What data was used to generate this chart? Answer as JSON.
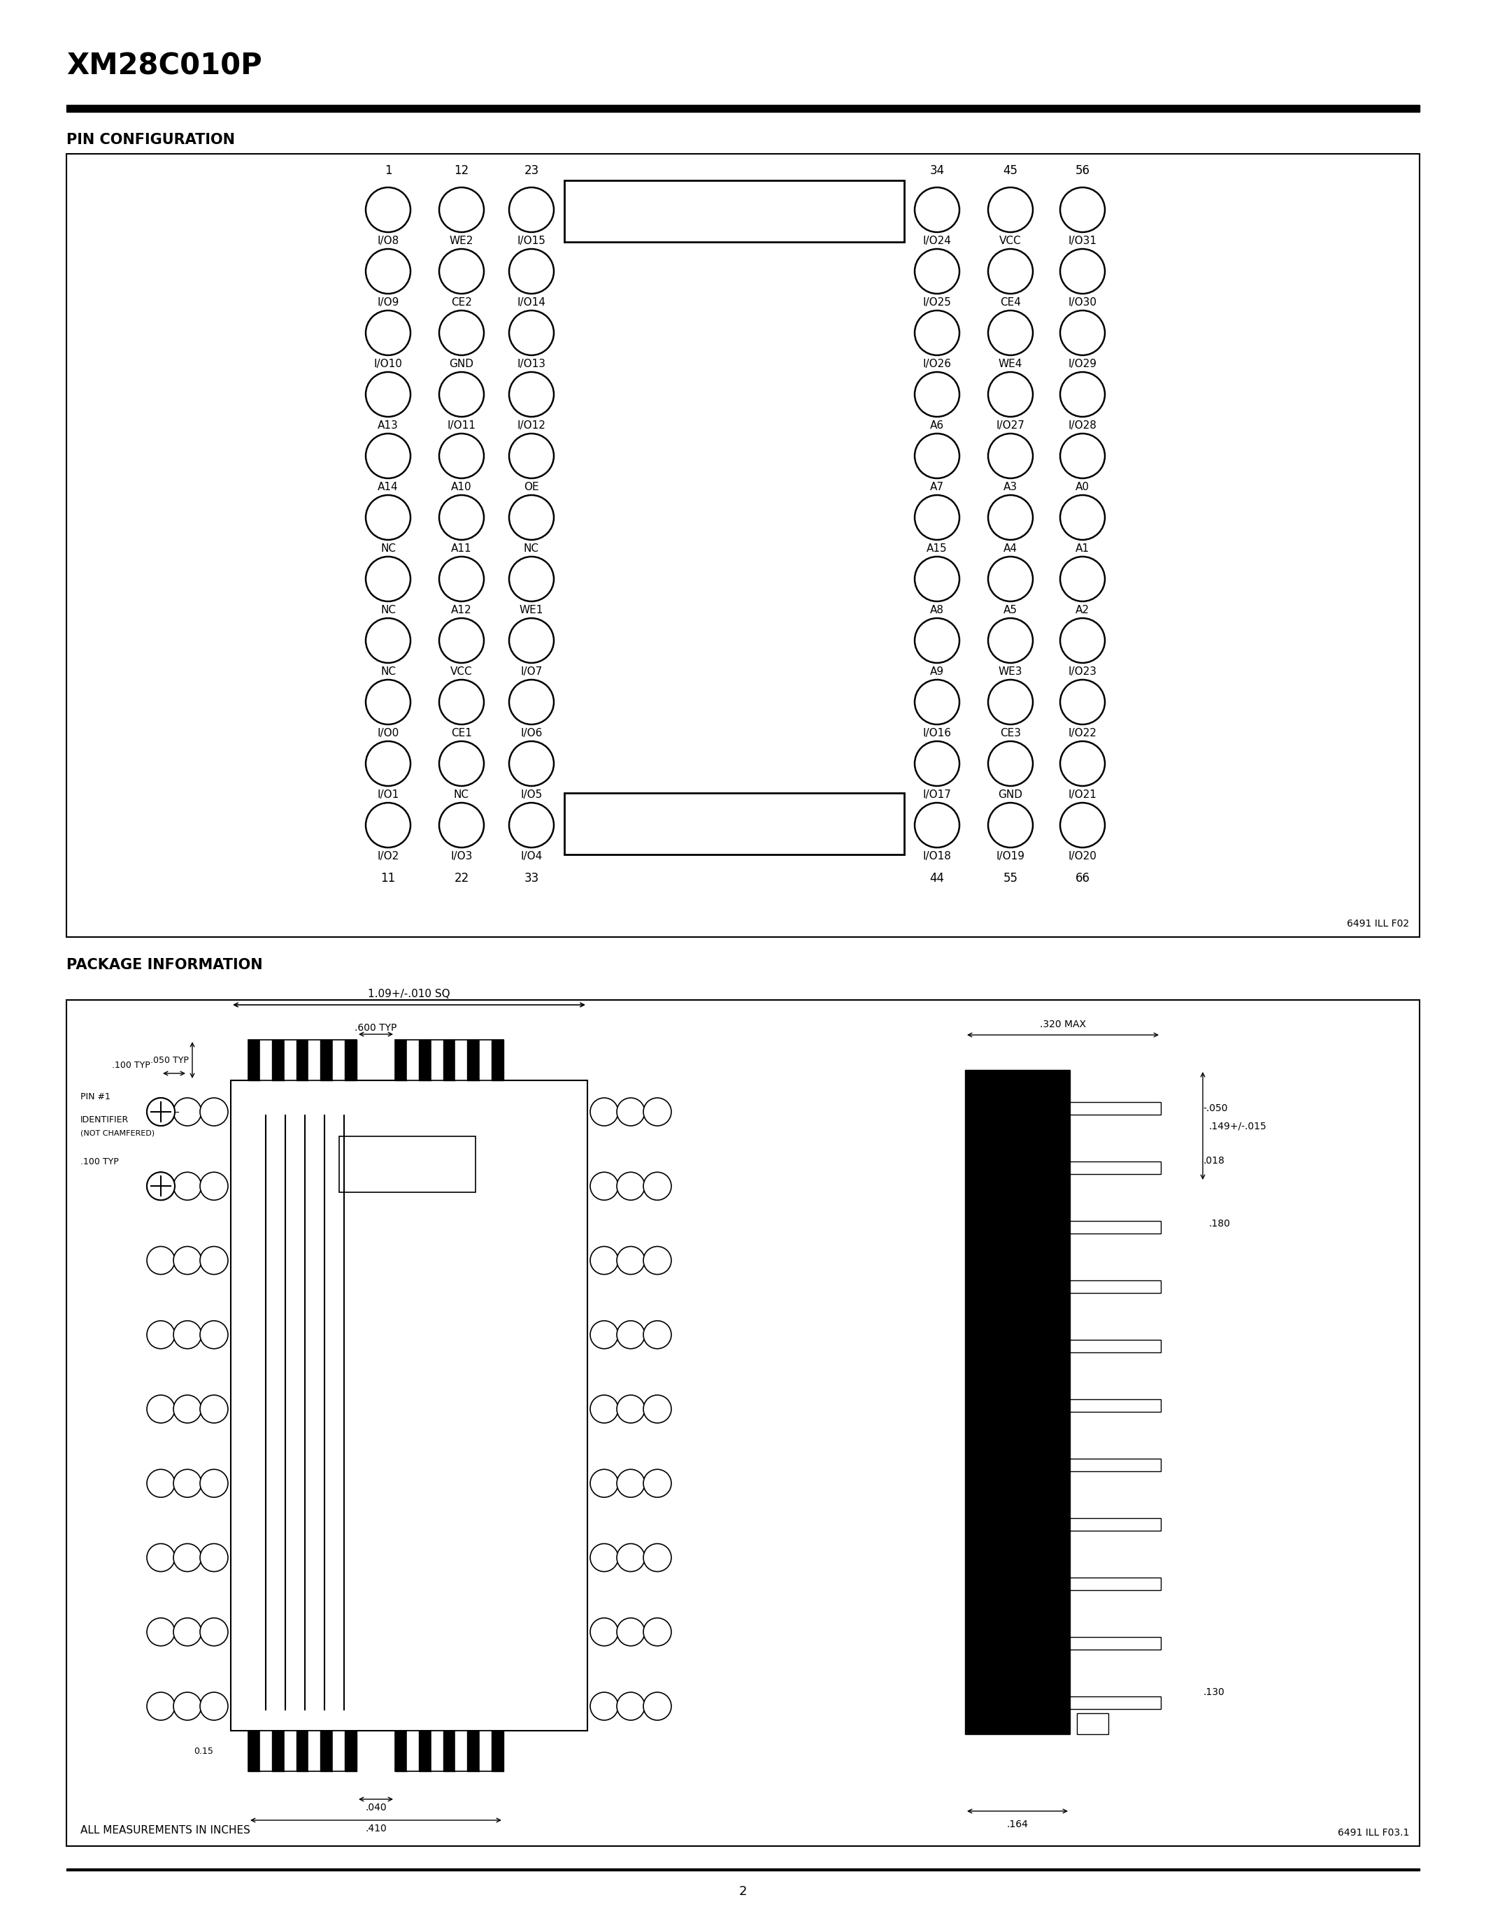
{
  "page_title": "XM28C010P",
  "section1_title": "PIN CONFIGURATION",
  "section2_title": "PACKAGE INFORMATION",
  "page_number": "2",
  "figure_note1": "6491 ILL F02",
  "figure_note2": "6491 ILL F03.1",
  "left_pins": [
    [
      "I/O8",
      "WE2",
      "I/O15"
    ],
    [
      "I/O9",
      "CE2",
      "I/O14"
    ],
    [
      "I/O10",
      "GND",
      "I/O13"
    ],
    [
      "A13",
      "I/O11",
      "I/O12"
    ],
    [
      "A14",
      "A10",
      "OE"
    ],
    [
      "NC",
      "A11",
      "NC"
    ],
    [
      "NC",
      "A12",
      "WE1"
    ],
    [
      "NC",
      "VCC",
      "I/O7"
    ],
    [
      "I/O0",
      "CE1",
      "I/O6"
    ],
    [
      "I/O1",
      "NC",
      "I/O5"
    ],
    [
      "I/O2",
      "I/O3",
      "I/O4"
    ]
  ],
  "right_pins": [
    [
      "I/O24",
      "VCC",
      "I/O31"
    ],
    [
      "I/O25",
      "CE4",
      "I/O30"
    ],
    [
      "I/O26",
      "WE4",
      "I/O29"
    ],
    [
      "A6",
      "I/O27",
      "I/O28"
    ],
    [
      "A7",
      "A3",
      "A0"
    ],
    [
      "A15",
      "A4",
      "A1"
    ],
    [
      "A8",
      "A5",
      "A2"
    ],
    [
      "A9",
      "WE3",
      "I/O23"
    ],
    [
      "I/O16",
      "CE3",
      "I/O22"
    ],
    [
      "I/O17",
      "GND",
      "I/O21"
    ],
    [
      "I/O18",
      "I/O19",
      "I/O20"
    ]
  ],
  "top_left_nums": [
    "1",
    "12",
    "23"
  ],
  "top_right_nums": [
    "34",
    "45",
    "56"
  ],
  "bot_left_nums": [
    "11",
    "22",
    "33"
  ],
  "bot_right_nums": [
    "44",
    "55",
    "66"
  ],
  "bg": "#ffffff"
}
